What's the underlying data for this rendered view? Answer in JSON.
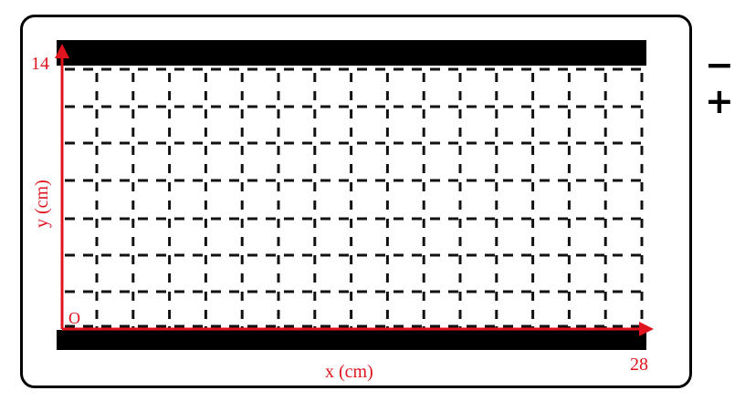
{
  "diagram": {
    "x_axis_label": "x (cm)",
    "y_axis_label": "y (cm)",
    "origin_label": "O",
    "x_max_label": "28",
    "y_max_label": "14",
    "negative_sign": "−",
    "positive_sign": "+",
    "axis_color": "#e0141e",
    "plate_color": "#000000"
  }
}
